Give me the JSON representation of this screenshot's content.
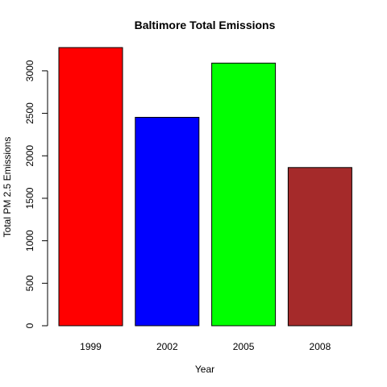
{
  "chart_data": {
    "type": "bar",
    "title": "Baltimore Total Emissions",
    "xlabel": "Year",
    "ylabel": "Total PM 2.5 Emissions",
    "categories": [
      "1999",
      "2002",
      "2005",
      "2008"
    ],
    "values": [
      3274,
      2453,
      3091,
      1862
    ],
    "colors": [
      "#ff0000",
      "#0000ff",
      "#00ff00",
      "#a52a2a"
    ],
    "ylim": [
      0,
      3274
    ],
    "yticks": [
      0,
      500,
      1000,
      1500,
      2000,
      2500,
      3000
    ],
    "grid": false,
    "legend": "none"
  }
}
